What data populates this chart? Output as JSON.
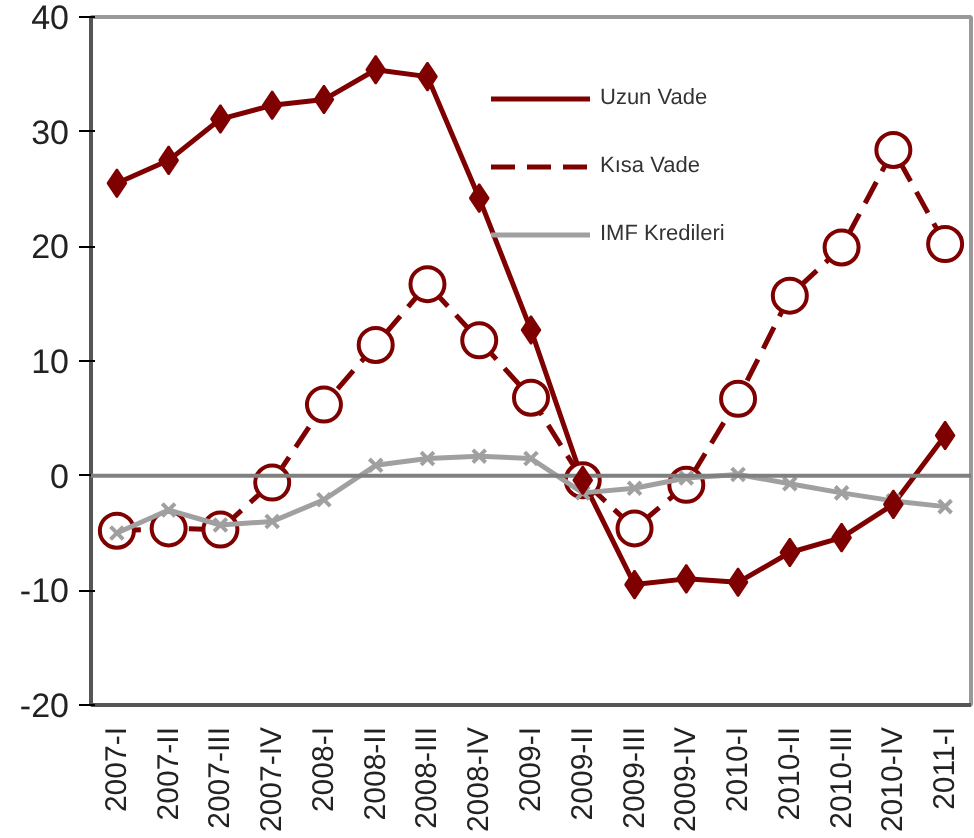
{
  "chart_data": {
    "type": "line",
    "categories": [
      "2007-I",
      "2007-II",
      "2007-III",
      "2007-IV",
      "2008-I",
      "2008-II",
      "2008-III",
      "2008-IV",
      "2009-I",
      "2009-II",
      "2009-III",
      "2009-IV",
      "2010-I",
      "2010-II",
      "2010-III",
      "2010-IV",
      "2011-I"
    ],
    "series": [
      {
        "name": "Uzun Vade",
        "color": "#7f0000",
        "marker": "diamond",
        "line_style": "solid",
        "values": [
          25.5,
          27.5,
          31.1,
          32.3,
          32.8,
          35.4,
          34.8,
          24.2,
          12.7,
          -0.4,
          -9.5,
          -9.0,
          -9.3,
          -6.7,
          -5.4,
          -2.5,
          3.5
        ]
      },
      {
        "name": "Kısa Vade",
        "color": "#7f0000",
        "marker": "circle",
        "line_style": "dashed",
        "values": [
          -4.8,
          -4.6,
          -4.7,
          -0.6,
          6.2,
          11.4,
          16.7,
          11.8,
          6.8,
          -0.4,
          -4.6,
          -0.8,
          6.7,
          15.7,
          19.9,
          28.4,
          20.2
        ]
      },
      {
        "name": "IMF Kredileri",
        "color": "#a0a0a0",
        "marker": "cross",
        "line_style": "solid",
        "values": [
          -5.0,
          -3.0,
          -4.3,
          -4.0,
          -2.1,
          0.9,
          1.5,
          1.7,
          1.5,
          -1.5,
          -1.1,
          -0.2,
          0.1,
          -0.7,
          -1.5,
          -2.2,
          -2.7
        ]
      }
    ],
    "ylim": [
      -20,
      40
    ],
    "yticks": [
      -20,
      -10,
      0,
      10,
      20,
      30,
      40
    ],
    "grid": false,
    "legend": "top right",
    "ref_lines": [
      {
        "axis": "y",
        "value": 0,
        "color": "#808080"
      }
    ]
  }
}
